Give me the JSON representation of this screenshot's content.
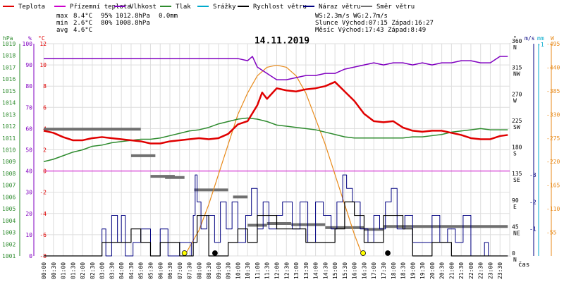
{
  "header": {
    "legend": [
      {
        "label": "Teplota",
        "color": "#e00000"
      },
      {
        "label": "Přízemní teplota",
        "color": "#cc00cc"
      },
      {
        "label": "Vlhkost",
        "color": "#8000c0"
      },
      {
        "label": "Tlak",
        "color": "#2e8b2e"
      },
      {
        "label": "Srážky",
        "color": "#00aacc"
      },
      {
        "label": "Rychlost větru",
        "color": "#000000"
      },
      {
        "label": "Náraz větru",
        "color": "#000080"
      },
      {
        "label": "Směr větru",
        "color": "#707070"
      }
    ],
    "stats": [
      {
        "name": "max",
        "temp": "8.4°C",
        "hum": "95%",
        "press": "1012.8hPa",
        "rain": "0.0mm"
      },
      {
        "name": "min",
        "temp": "2.6°C",
        "hum": "80%",
        "press": "1008.8hPa",
        "rain": ""
      },
      {
        "name": "avg",
        "temp": "4.6°C",
        "hum": "",
        "press": "",
        "rain": ""
      }
    ],
    "wind_line": "WS:2.3m/s      WG:2.7m/s",
    "sun_line": "Slunce Východ:07:15  Západ:16:27",
    "moon_line": "Měsíc  Východ:17:43  Západ:8:49",
    "date": "14.11.2019"
  },
  "colors": {
    "temp": "#e00000",
    "ground_temp": "#cc00cc",
    "humidity": "#8000c0",
    "pressure": "#2e8b2e",
    "rain": "#00aacc",
    "wind_speed": "#000000",
    "wind_gust": "#000080",
    "wind_dir": "#707070",
    "solar": "#e88a1a",
    "sun_marker": "#ffff00"
  },
  "axes": {
    "hpa": {
      "title": "hPa",
      "ticks": [
        "1001",
        "1002",
        "1003",
        "1004",
        "1005",
        "1006",
        "1007",
        "1008",
        "1009",
        "1010",
        "1011",
        "1012",
        "1013",
        "1014",
        "1015",
        "1016",
        "1017",
        "1018",
        "1019"
      ]
    },
    "percent": {
      "title": "%",
      "ticks": [
        "0",
        "10",
        "20",
        "30",
        "40",
        "50",
        "60",
        "70",
        "80",
        "90",
        "100"
      ]
    },
    "celsius": {
      "title": "°C",
      "ticks": [
        "-8",
        "-6",
        "-4",
        "-2",
        "0",
        "2",
        "4",
        "6",
        "8",
        "10",
        "12"
      ]
    },
    "direction": {
      "title": "°",
      "ticks": [
        {
          "deg": "0",
          "dir": "N"
        },
        {
          "deg": "45",
          "dir": "NE"
        },
        {
          "deg": "90",
          "dir": "E"
        },
        {
          "deg": "135",
          "dir": "SE"
        },
        {
          "deg": "180",
          "dir": "S"
        },
        {
          "deg": "225",
          "dir": "SW"
        },
        {
          "deg": "270",
          "dir": "W"
        },
        {
          "deg": "315",
          "dir": "NW"
        },
        {
          "deg": "360",
          "dir": "N"
        }
      ]
    },
    "wind": {
      "title": "m/s",
      "ticks": [
        "1",
        "2",
        "3"
      ]
    },
    "rain": {
      "title": "mm",
      "ticks": [
        "1"
      ]
    },
    "solar": {
      "title": "W",
      "ticks": [
        "55",
        "110",
        "165",
        "220",
        "275",
        "330",
        "385",
        "440",
        "495"
      ]
    },
    "x_label": "čas"
  },
  "chart_data": {
    "type": "line",
    "title": "14.11.2019",
    "x_ticks": [
      "00:00",
      "00:30",
      "01:00",
      "01:30",
      "02:00",
      "02:30",
      "03:00",
      "03:30",
      "04:00",
      "04:30",
      "05:00",
      "05:30",
      "06:00",
      "06:30",
      "07:00",
      "07:30",
      "08:00",
      "08:30",
      "09:00",
      "09:30",
      "10:00",
      "10:30",
      "11:00",
      "11:30",
      "12:00",
      "12:30",
      "13:00",
      "13:30",
      "14:00",
      "14:30",
      "15:00",
      "15:30",
      "16:00",
      "16:30",
      "17:00",
      "17:30",
      "18:00",
      "18:30",
      "19:00",
      "19:30",
      "20:00",
      "20:30",
      "21:00",
      "21:30",
      "22:00",
      "22:30",
      "23:00",
      "23:30"
    ],
    "series": [
      {
        "name": "Teplota",
        "unit": "°C",
        "x": [
          0,
          0.5,
          1,
          1.5,
          2,
          2.5,
          3,
          3.5,
          4,
          4.5,
          5,
          5.5,
          6,
          6.5,
          7,
          7.5,
          8,
          8.5,
          9,
          9.5,
          10,
          10.5,
          11,
          11.25,
          11.5,
          12,
          12.5,
          13,
          13.5,
          14,
          14.5,
          15,
          15.5,
          16,
          16.5,
          17,
          17.5,
          18,
          18.5,
          19,
          19.5,
          20,
          20.5,
          21,
          21.5,
          22,
          22.5,
          23,
          23.5,
          23.9
        ],
        "values": [
          3.8,
          3.6,
          3.2,
          2.9,
          2.9,
          3.1,
          3.2,
          3.1,
          3.0,
          2.9,
          2.8,
          2.6,
          2.6,
          2.8,
          2.9,
          3.0,
          3.1,
          3.0,
          3.1,
          3.5,
          4.4,
          4.7,
          6.2,
          7.4,
          6.8,
          7.8,
          7.6,
          7.5,
          7.7,
          7.8,
          8.0,
          8.4,
          7.5,
          6.6,
          5.4,
          4.7,
          4.6,
          4.7,
          4.1,
          3.8,
          3.7,
          3.8,
          3.8,
          3.6,
          3.4,
          3.1,
          3.0,
          3.0,
          3.3,
          3.4
        ]
      },
      {
        "name": "Vlhkost",
        "unit": "%",
        "x": [
          0,
          0.5,
          1,
          1.5,
          2,
          2.5,
          3,
          3.5,
          4,
          4.5,
          5,
          5.5,
          6,
          6.5,
          7,
          7.5,
          8,
          8.5,
          9,
          9.5,
          10,
          10.5,
          10.75,
          11,
          11.5,
          12,
          12.5,
          13,
          13.5,
          14,
          14.5,
          15,
          15.5,
          16,
          16.5,
          17,
          17.5,
          18,
          18.5,
          19,
          19.5,
          20,
          20.5,
          21,
          21.5,
          22,
          22.5,
          23,
          23.5,
          23.9
        ],
        "values": [
          93,
          93,
          93,
          93,
          93,
          93,
          93,
          93,
          93,
          93,
          93,
          93,
          93,
          93,
          93,
          93,
          93,
          93,
          93,
          93,
          93,
          92,
          94,
          89,
          86,
          83,
          83,
          84,
          85,
          85,
          86,
          86,
          88,
          89,
          90,
          91,
          90,
          91,
          91,
          90,
          91,
          90,
          91,
          91,
          92,
          92,
          91,
          91,
          94,
          94
        ]
      },
      {
        "name": "Tlak",
        "unit": "hPa",
        "x": [
          0,
          0.5,
          1,
          1.5,
          2,
          2.5,
          3,
          3.5,
          4,
          4.5,
          5,
          5.5,
          6,
          6.5,
          7,
          7.5,
          8,
          8.5,
          9,
          9.5,
          10,
          10.5,
          11,
          11.5,
          12,
          12.5,
          13,
          13.5,
          14,
          14.5,
          15,
          15.5,
          16,
          16.5,
          17,
          17.5,
          18,
          18.5,
          19,
          19.5,
          20,
          20.5,
          21,
          21.5,
          22,
          22.5,
          23,
          23.5,
          23.9
        ],
        "values": [
          1009.0,
          1009.2,
          1009.5,
          1009.8,
          1010.0,
          1010.3,
          1010.4,
          1010.6,
          1010.7,
          1010.8,
          1010.9,
          1010.9,
          1011.0,
          1011.2,
          1011.4,
          1011.6,
          1011.7,
          1011.9,
          1012.2,
          1012.4,
          1012.6,
          1012.7,
          1012.6,
          1012.4,
          1012.1,
          1012.0,
          1011.9,
          1011.8,
          1011.7,
          1011.5,
          1011.3,
          1011.1,
          1011.0,
          1011.0,
          1011.0,
          1011.0,
          1011.0,
          1011.0,
          1011.1,
          1011.1,
          1011.2,
          1011.3,
          1011.5,
          1011.6,
          1011.7,
          1011.8,
          1011.7,
          1011.7,
          1011.7
        ]
      },
      {
        "name": "Rychlost větru",
        "unit": "m/s",
        "x": [
          0,
          2.5,
          3,
          3.5,
          4,
          4.5,
          5,
          5.5,
          6,
          6.5,
          7,
          7.5,
          7.7,
          7.9,
          8.1,
          8.5,
          9,
          9.5,
          10,
          10.5,
          11,
          11.5,
          12,
          12.5,
          13,
          13.5,
          14,
          14.5,
          15,
          15.5,
          16,
          16.5,
          17,
          17.5,
          18,
          18.5,
          19,
          19.5,
          20,
          20.5,
          21,
          21.5,
          22,
          22.5,
          23,
          23.9
        ],
        "values": [
          0,
          0,
          0.5,
          0.5,
          0.5,
          1,
          0.5,
          0,
          0.5,
          0.5,
          0,
          0,
          0.5,
          1.5,
          1.5,
          0,
          0,
          0.5,
          1,
          0.5,
          1.5,
          1.5,
          1,
          1,
          1,
          0.5,
          0.5,
          0.5,
          1,
          2,
          1.5,
          0.5,
          0.5,
          1.5,
          1.5,
          1,
          0,
          0,
          0.5,
          0.5,
          0,
          0,
          0,
          0,
          0,
          0
        ]
      },
      {
        "name": "Náraz větru",
        "unit": "m/s",
        "x": [
          0,
          2.5,
          3,
          3.2,
          3.5,
          3.8,
          4,
          4.2,
          4.6,
          5,
          5.5,
          6,
          6.4,
          7,
          7.6,
          7.7,
          7.8,
          7.9,
          8.1,
          8.4,
          8.8,
          9.1,
          9.4,
          9.7,
          10,
          10.4,
          10.7,
          11.0,
          11.3,
          11.6,
          12,
          12.3,
          12.8,
          13.2,
          13.6,
          14,
          14.4,
          14.8,
          15.1,
          15.4,
          15.6,
          15.9,
          16.3,
          16.7,
          17,
          17.3,
          17.6,
          17.9,
          18.2,
          18.6,
          19,
          19.6,
          20,
          20.4,
          20.8,
          21.2,
          21.6,
          22,
          22.5,
          22.7,
          22.9,
          23.9
        ],
        "values": [
          0,
          0,
          1,
          0,
          1.5,
          0.5,
          1.5,
          0,
          0.5,
          1,
          0,
          1,
          0,
          0.5,
          0,
          1.5,
          3,
          2,
          1,
          1.5,
          0.5,
          2,
          1,
          2,
          0.5,
          1.5,
          2.5,
          1,
          2,
          1,
          1.5,
          2,
          1,
          2,
          0.5,
          2,
          1.5,
          1,
          2,
          3,
          2.5,
          2,
          1,
          0.5,
          1.5,
          1,
          2,
          2.5,
          1,
          1.5,
          0.5,
          0.5,
          1.5,
          0.5,
          1,
          0.5,
          1.5,
          0,
          0,
          0.5,
          0,
          0
        ]
      },
      {
        "name": "Směr větru",
        "unit": "°",
        "x_start": [
          0,
          4.5,
          5.5,
          6.25,
          7.75,
          9.75,
          10.5,
          11.5,
          12.75,
          14.5,
          16.5,
          17.5
        ],
        "x_end": [
          5.0,
          5.75,
          6.75,
          7.25,
          9.5,
          10.5,
          11.5,
          12.75,
          14.5,
          16.5,
          17.5,
          23.9
        ],
        "values": [
          215,
          170,
          135,
          133,
          112,
          100,
          52,
          55,
          53,
          48,
          45,
          50
        ]
      },
      {
        "name": "Sluneční záření",
        "unit": "W",
        "x": [
          7.25,
          8,
          8.5,
          9,
          9.5,
          10,
          10.5,
          11,
          11.5,
          12,
          12.5,
          13,
          13.5,
          14,
          14.5,
          15,
          15.5,
          16,
          16.42
        ],
        "values": [
          0,
          60,
          120,
          190,
          260,
          330,
          380,
          420,
          440,
          445,
          440,
          420,
          380,
          320,
          260,
          190,
          120,
          50,
          0
        ]
      }
    ],
    "sun_markers_x": [
      7.25,
      16.45
    ],
    "moon_markers_x": [
      8.82,
      17.72
    ],
    "y_ranges": {
      "celsius": [
        -8,
        12
      ],
      "percent": [
        0,
        100
      ],
      "hpa": [
        1001,
        1019
      ],
      "direction": [
        0,
        360
      ],
      "wind": [
        0,
        3
      ],
      "solar": [
        0,
        495
      ]
    },
    "grid": true
  }
}
